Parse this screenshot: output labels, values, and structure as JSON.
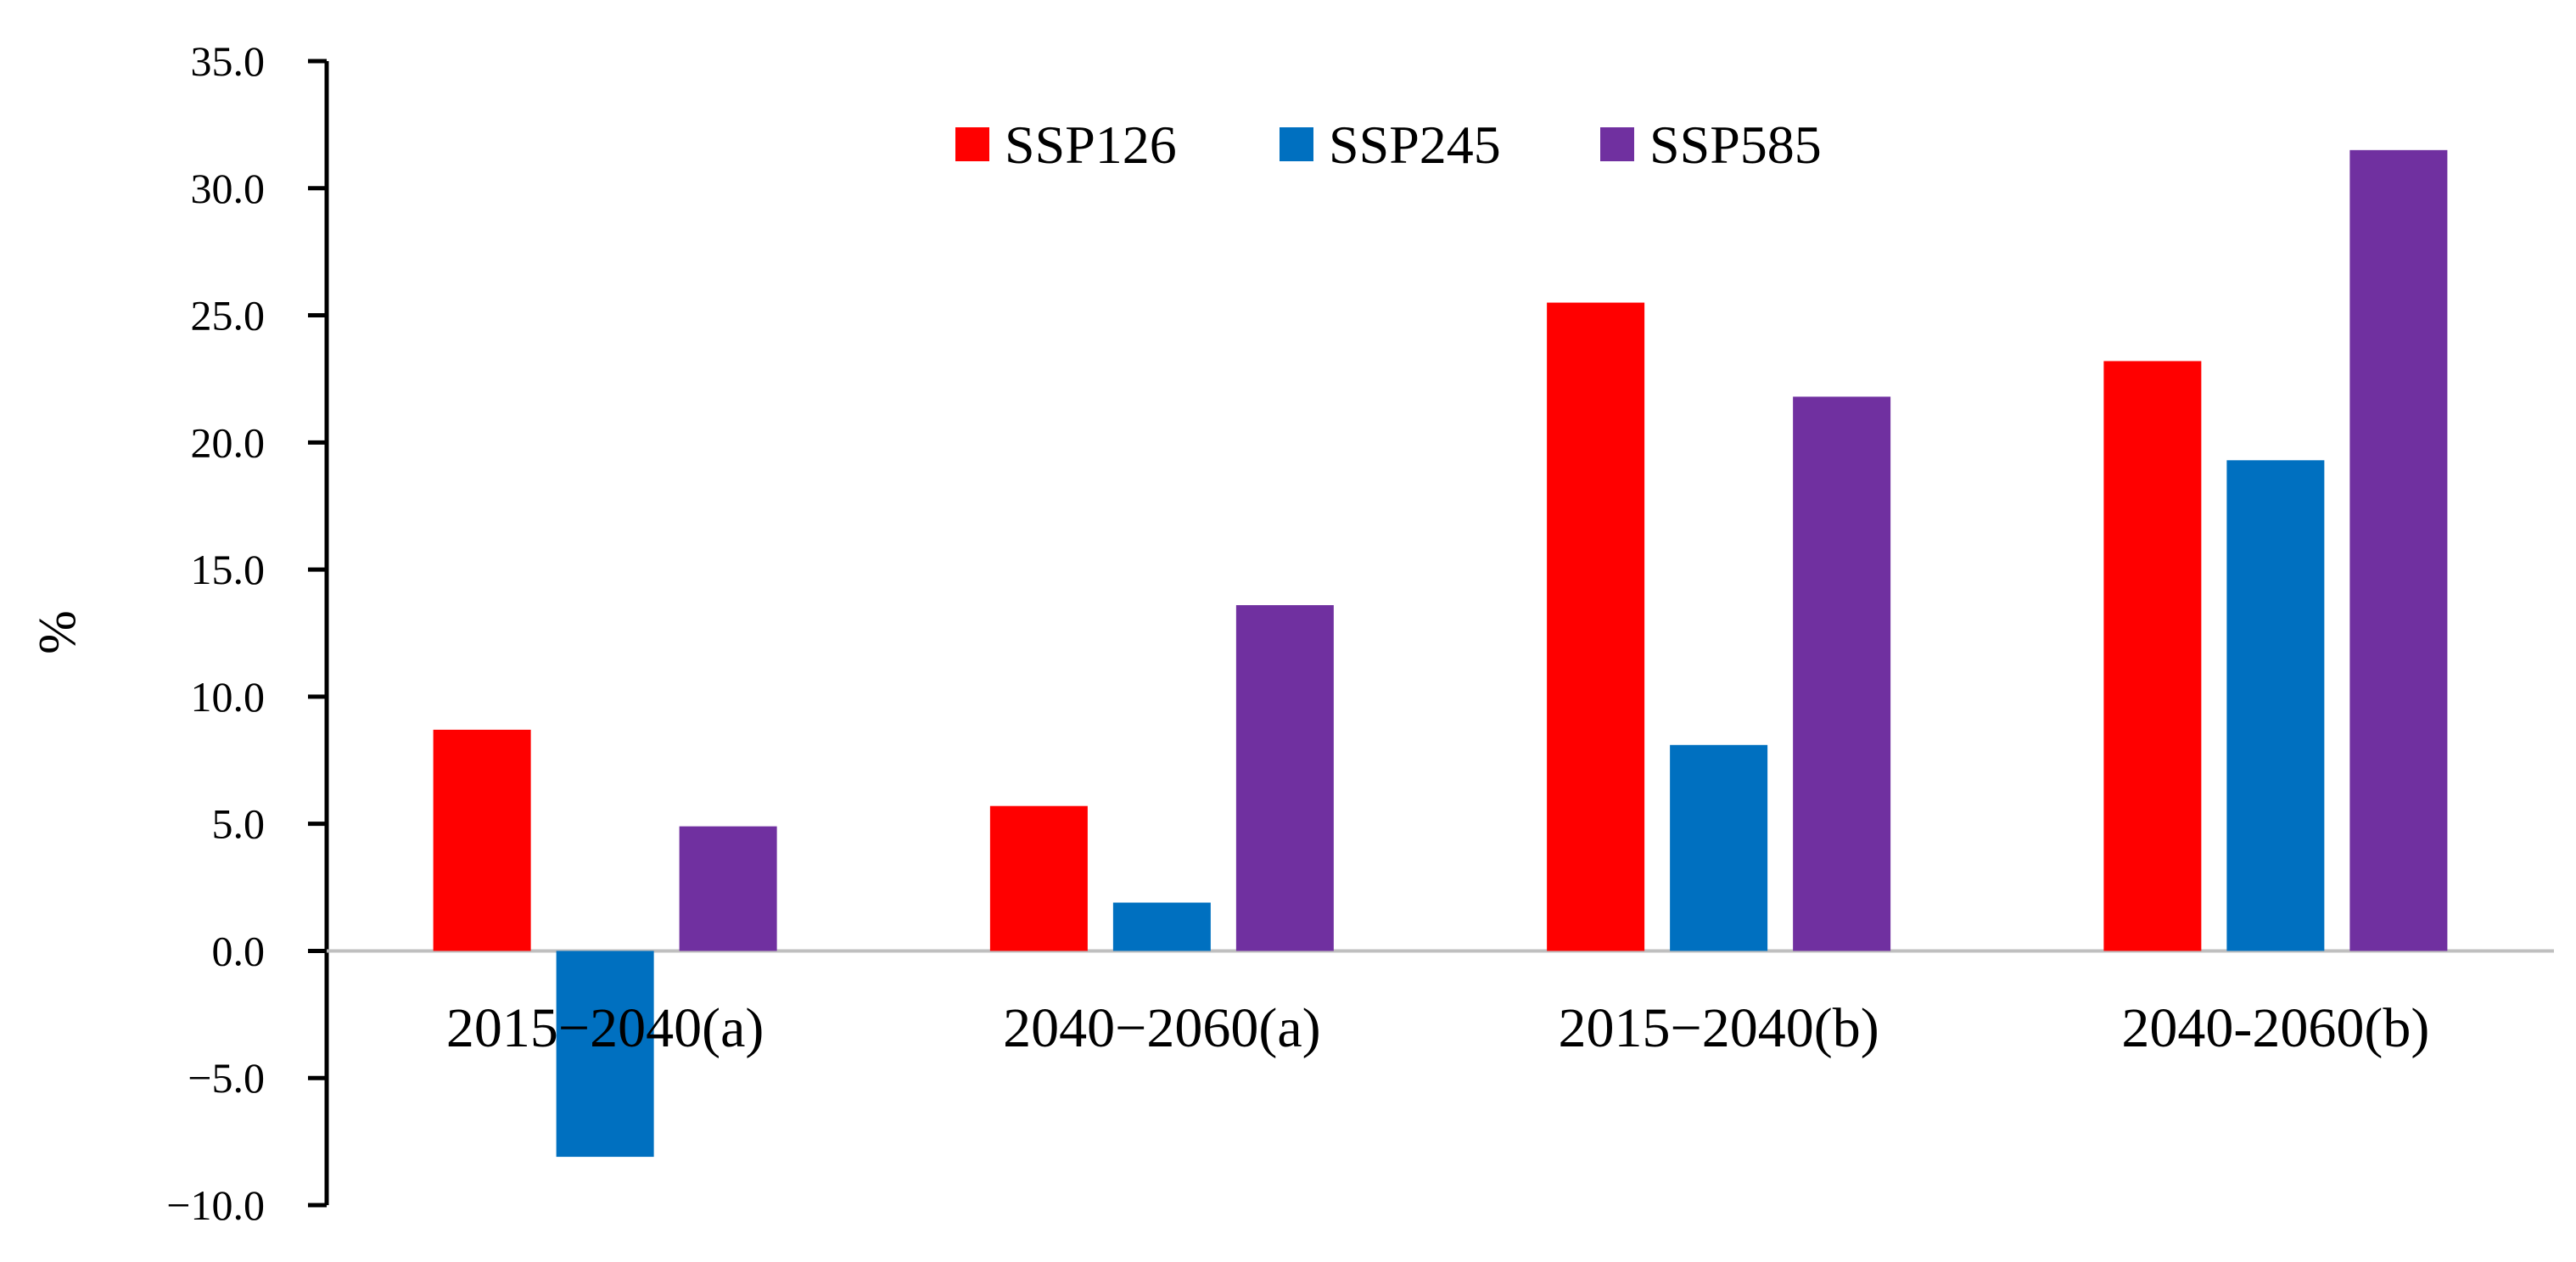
{
  "chart_data": {
    "type": "bar",
    "title": "",
    "xlabel": "",
    "ylabel": "%",
    "ylim": [
      -10,
      35
    ],
    "ytick_step": 5,
    "ytick_labels": [
      "−10.0",
      "−5.0",
      "0.0",
      "5.0",
      "10.0",
      "15.0",
      "20.0",
      "25.0",
      "30.0",
      "35.0"
    ],
    "categories": [
      "2015−2040(a)",
      "2040−2060(a)",
      "2015−2040(b)",
      "2040-2060(b)"
    ],
    "series": [
      {
        "name": "SSP126",
        "color": "#ff0000",
        "values": [
          8.7,
          5.7,
          25.5,
          23.2
        ]
      },
      {
        "name": "SSP245",
        "color": "#0070c0",
        "values": [
          -8.1,
          1.9,
          8.1,
          19.3
        ]
      },
      {
        "name": "SSP585",
        "color": "#7030a0",
        "values": [
          4.9,
          13.6,
          21.8,
          31.5
        ]
      }
    ],
    "grid": false,
    "legend_position": "top-center"
  }
}
